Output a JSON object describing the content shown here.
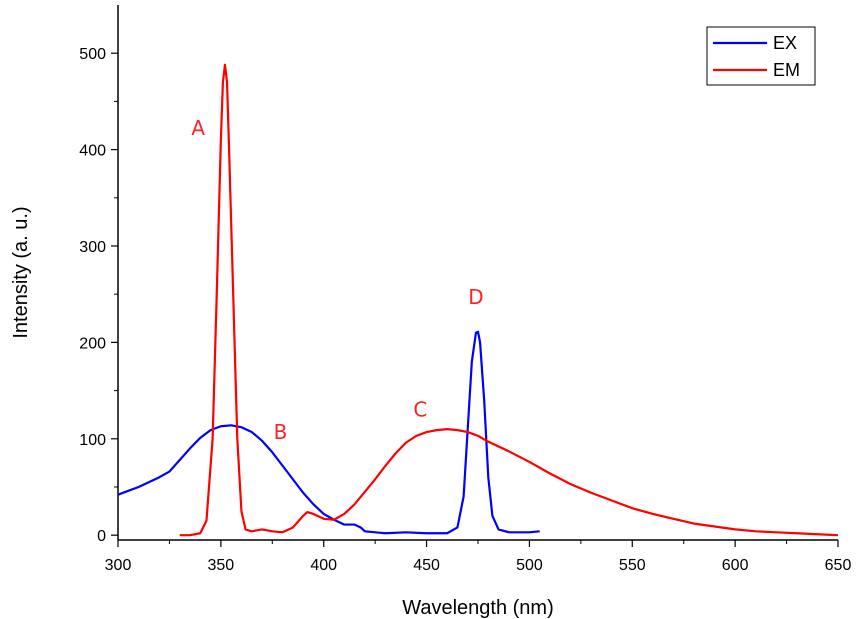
{
  "chart_data": {
    "type": "line",
    "xlabel": "Wavelength (nm)",
    "ylabel": "Intensity (a. u.)",
    "xlim": [
      300,
      650
    ],
    "ylim": [
      -5,
      550
    ],
    "xticks": [
      300,
      350,
      400,
      450,
      500,
      550,
      600,
      650
    ],
    "yticks": [
      0,
      100,
      200,
      300,
      400,
      500
    ],
    "legend_position": "top-right",
    "series": [
      {
        "name": "EX",
        "color": "#0000ff",
        "points": [
          [
            300,
            42
          ],
          [
            310,
            50
          ],
          [
            320,
            60
          ],
          [
            325,
            66
          ],
          [
            330,
            78
          ],
          [
            335,
            90
          ],
          [
            340,
            101
          ],
          [
            345,
            109
          ],
          [
            350,
            113
          ],
          [
            355,
            114
          ],
          [
            360,
            112
          ],
          [
            365,
            107
          ],
          [
            370,
            98
          ],
          [
            375,
            86
          ],
          [
            380,
            72
          ],
          [
            385,
            58
          ],
          [
            390,
            44
          ],
          [
            395,
            32
          ],
          [
            400,
            22
          ],
          [
            405,
            16
          ],
          [
            410,
            11
          ],
          [
            412,
            11
          ],
          [
            415,
            11
          ],
          [
            418,
            8
          ],
          [
            420,
            4
          ],
          [
            425,
            3
          ],
          [
            430,
            2
          ],
          [
            440,
            3
          ],
          [
            450,
            2
          ],
          [
            460,
            2
          ],
          [
            465,
            8
          ],
          [
            468,
            40
          ],
          [
            470,
            110
          ],
          [
            472,
            180
          ],
          [
            474,
            210
          ],
          [
            475,
            211
          ],
          [
            476,
            200
          ],
          [
            478,
            140
          ],
          [
            480,
            60
          ],
          [
            482,
            20
          ],
          [
            485,
            6
          ],
          [
            490,
            3
          ],
          [
            500,
            3
          ],
          [
            505,
            4
          ]
        ]
      },
      {
        "name": "EM",
        "color": "#ff0000",
        "points": [
          [
            330,
            0
          ],
          [
            335,
            0
          ],
          [
            340,
            2
          ],
          [
            343,
            15
          ],
          [
            346,
            100
          ],
          [
            348,
            250
          ],
          [
            350,
            410
          ],
          [
            351,
            470
          ],
          [
            352,
            488
          ],
          [
            353,
            470
          ],
          [
            354,
            400
          ],
          [
            356,
            250
          ],
          [
            358,
            100
          ],
          [
            360,
            25
          ],
          [
            362,
            6
          ],
          [
            365,
            4
          ],
          [
            370,
            6
          ],
          [
            375,
            4
          ],
          [
            380,
            3
          ],
          [
            385,
            8
          ],
          [
            390,
            20
          ],
          [
            392,
            24
          ],
          [
            395,
            22
          ],
          [
            400,
            17
          ],
          [
            405,
            16
          ],
          [
            410,
            22
          ],
          [
            415,
            32
          ],
          [
            420,
            45
          ],
          [
            425,
            58
          ],
          [
            430,
            72
          ],
          [
            435,
            85
          ],
          [
            440,
            96
          ],
          [
            445,
            103
          ],
          [
            450,
            107
          ],
          [
            455,
            109
          ],
          [
            460,
            110
          ],
          [
            465,
            109
          ],
          [
            470,
            107
          ],
          [
            475,
            103
          ],
          [
            480,
            97
          ],
          [
            490,
            87
          ],
          [
            500,
            76
          ],
          [
            510,
            64
          ],
          [
            520,
            53
          ],
          [
            530,
            44
          ],
          [
            540,
            36
          ],
          [
            550,
            28
          ],
          [
            560,
            22
          ],
          [
            570,
            17
          ],
          [
            580,
            12
          ],
          [
            590,
            9
          ],
          [
            600,
            6
          ],
          [
            610,
            4
          ],
          [
            620,
            3
          ],
          [
            630,
            2
          ],
          [
            640,
            1
          ],
          [
            650,
            0
          ]
        ]
      }
    ],
    "annotations": [
      {
        "text": "A",
        "x": 339,
        "y": 415,
        "color": "#ff2222"
      },
      {
        "text": "B",
        "x": 379,
        "y": 100,
        "color": "#ff2222"
      },
      {
        "text": "C",
        "x": 447,
        "y": 123,
        "color": "#ff2222"
      },
      {
        "text": "D",
        "x": 474,
        "y": 240,
        "color": "#ff2222"
      }
    ]
  }
}
